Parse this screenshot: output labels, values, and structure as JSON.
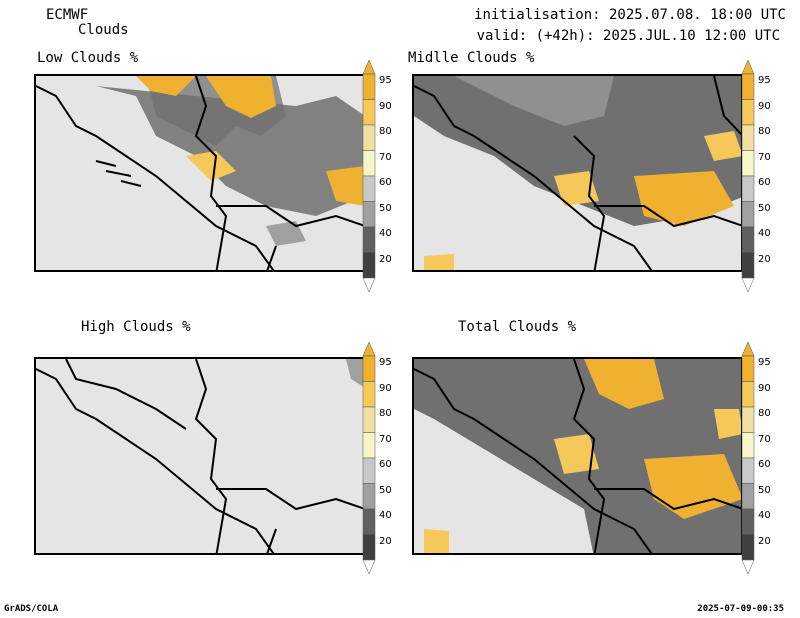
{
  "header": {
    "model": "ECMWF",
    "field": "Clouds",
    "init": "initialisation: 2025.07.08. 18:00 UTC",
    "valid": "valid: (+42h): 2025.JUL.10 12:00 UTC"
  },
  "panels": [
    {
      "title": "Low Clouds %"
    },
    {
      "title": "Midlle Clouds %"
    },
    {
      "title": "High Clouds %"
    },
    {
      "title": "Total Clouds %"
    }
  ],
  "colorbar": {
    "labels": [
      "95",
      "90",
      "80",
      "70",
      "60",
      "50",
      "40",
      "20"
    ],
    "colors": [
      "#f0b030",
      "#f5c85a",
      "#f0dfa0",
      "#f5f5c8",
      "#c8c8c8",
      "#a0a0a0",
      "#606060",
      "#404040"
    ]
  },
  "footer": {
    "left": "GrADS/COLA",
    "right": "2025-07-09-00:35"
  }
}
